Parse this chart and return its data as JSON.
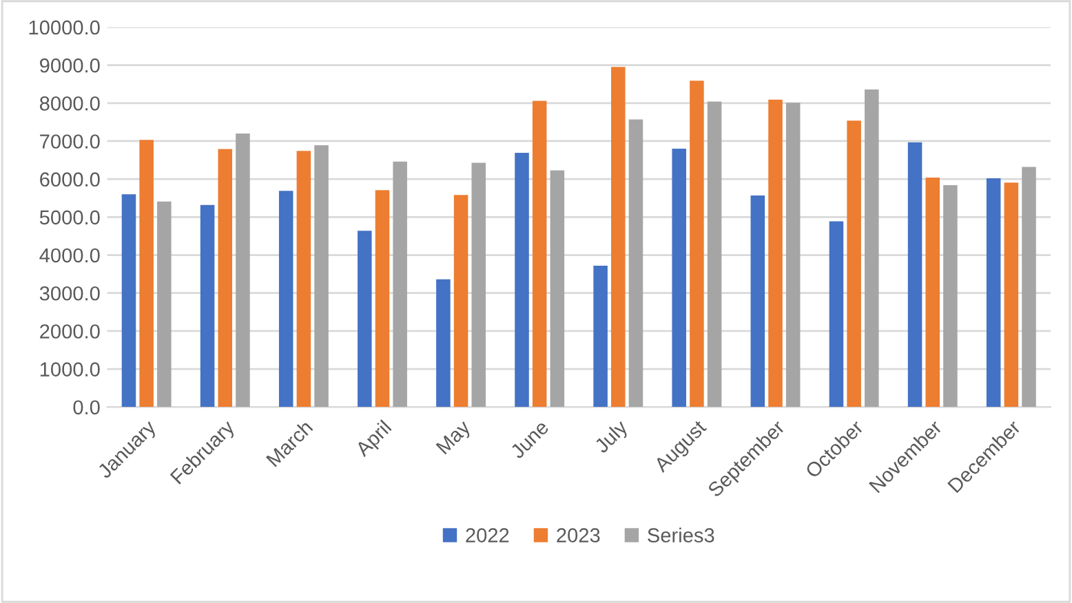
{
  "chart_data": {
    "type": "bar",
    "categories": [
      "January",
      "February",
      "March",
      "April",
      "May",
      "June",
      "July",
      "August",
      "September",
      "October",
      "November",
      "December"
    ],
    "series": [
      {
        "name": "2022",
        "color": "#4472c4",
        "values": [
          5600,
          5320,
          5690,
          4640,
          3360,
          6690,
          3720,
          6800,
          5570,
          4890,
          6970,
          6020
        ]
      },
      {
        "name": "2023",
        "color": "#ed7d31",
        "values": [
          7030,
          6790,
          6740,
          5710,
          5580,
          8060,
          8950,
          8590,
          8090,
          7540,
          6040,
          5910
        ]
      },
      {
        "name": "Series3",
        "color": "#a5a5a5",
        "values": [
          5410,
          7200,
          6890,
          6460,
          6430,
          6230,
          7570,
          8040,
          8010,
          8360,
          5840,
          6320
        ]
      }
    ],
    "ylim": [
      0,
      10000
    ],
    "yticks": [
      {
        "value": 0,
        "label": "0.0"
      },
      {
        "value": 1000,
        "label": "1000.0"
      },
      {
        "value": 2000,
        "label": "2000.0"
      },
      {
        "value": 3000,
        "label": "3000.0"
      },
      {
        "value": 4000,
        "label": "4000.0"
      },
      {
        "value": 5000,
        "label": "5000.0"
      },
      {
        "value": 6000,
        "label": "6000.0"
      },
      {
        "value": 7000,
        "label": "7000.0"
      },
      {
        "value": 8000,
        "label": "8000.0"
      },
      {
        "value": 9000,
        "label": "9000.0"
      },
      {
        "value": 10000,
        "label": "10000.0"
      }
    ],
    "grid": "y",
    "legend": "bottom"
  }
}
